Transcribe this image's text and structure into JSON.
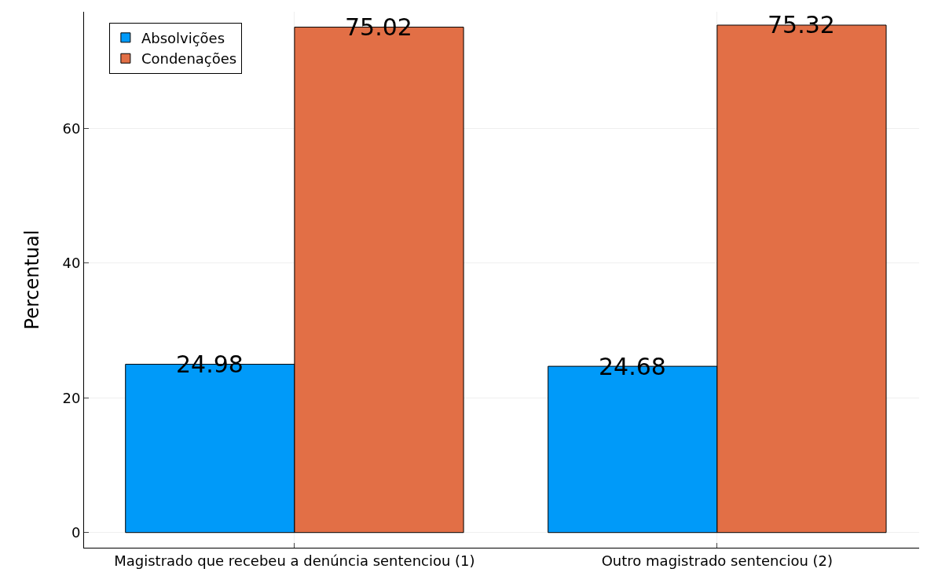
{
  "chart_data": {
    "type": "bar",
    "ylabel": "Percentual",
    "categories": [
      "Magistrado que recebeu a denúncia sentenciou (1)",
      "Outro magistrado sentenciou (2)"
    ],
    "series": [
      {
        "name": "Absolvições",
        "color": "#009af9",
        "values": [
          24.98,
          24.68
        ]
      },
      {
        "name": "Condenações",
        "color": "#e26f46",
        "values": [
          75.02,
          75.32
        ]
      }
    ],
    "ylim": [
      -2.25,
      77.3
    ],
    "yticks": [
      0,
      20,
      40,
      60
    ],
    "grid": true,
    "legend": "top left",
    "data_labels": true
  }
}
